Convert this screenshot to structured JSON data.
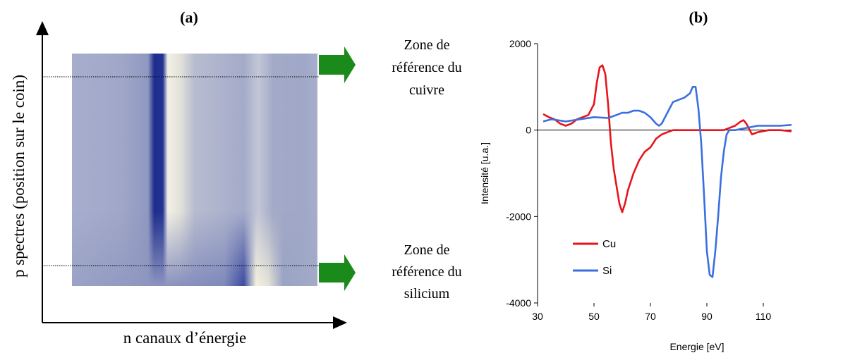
{
  "panel_a": {
    "label": "(a)",
    "y_axis_label": "p spectres (position sur le coin)",
    "x_axis_label": "n canaux d’énergie",
    "zone_cu": [
      "Zone de",
      "référence du",
      "cuivre"
    ],
    "zone_si": [
      "Zone de",
      "référence du",
      "silicium"
    ],
    "colors": {
      "map_base": "#9aa3c6",
      "dark_band": "#1f2e8c",
      "bright_band": "#f3f1e6",
      "arrow": "#1a8a1a"
    }
  },
  "chart_data": {
    "type": "line",
    "panel_label": "(b)",
    "xlabel": "Energie [eV]",
    "ylabel": "Intensité [u.a.]",
    "xlim": [
      30,
      120
    ],
    "ylim": [
      -4000,
      2000
    ],
    "xticks": [
      30,
      50,
      70,
      90,
      110
    ],
    "yticks": [
      -4000,
      -2000,
      0,
      2000
    ],
    "grid": false,
    "legend_position": "bottom-left",
    "series": [
      {
        "name": "Cu",
        "color": "#e8141b",
        "x": [
          32,
          34,
          36,
          38,
          40,
          42,
          44,
          46,
          48,
          50,
          51,
          52,
          53,
          54,
          55,
          56,
          57,
          58,
          59,
          60,
          61,
          62,
          64,
          66,
          68,
          70,
          72,
          74,
          76,
          78,
          80,
          84,
          88,
          92,
          96,
          100,
          102,
          103,
          104,
          106,
          108,
          112,
          116,
          120
        ],
        "y": [
          370,
          300,
          250,
          150,
          100,
          150,
          250,
          300,
          350,
          600,
          1100,
          1450,
          1500,
          1300,
          600,
          -300,
          -900,
          -1300,
          -1700,
          -1900,
          -1700,
          -1400,
          -1000,
          -700,
          -500,
          -400,
          -200,
          -100,
          -50,
          0,
          0,
          0,
          0,
          0,
          0,
          100,
          200,
          230,
          150,
          -100,
          -50,
          0,
          0,
          -30
        ]
      },
      {
        "name": "Si",
        "color": "#3a6fe0",
        "x": [
          32,
          35,
          40,
          45,
          50,
          55,
          58,
          60,
          62,
          64,
          66,
          68,
          70,
          72,
          73,
          74,
          76,
          78,
          80,
          82,
          84,
          85,
          86,
          87,
          88,
          89,
          90,
          91,
          92,
          93,
          94,
          95,
          96,
          97,
          98,
          100,
          104,
          108,
          112,
          116,
          120
        ],
        "y": [
          200,
          250,
          200,
          250,
          300,
          280,
          350,
          400,
          400,
          450,
          450,
          400,
          300,
          150,
          100,
          150,
          400,
          650,
          700,
          750,
          850,
          1000,
          1000,
          500,
          -300,
          -1500,
          -2800,
          -3350,
          -3400,
          -2800,
          -2000,
          -1100,
          -500,
          -100,
          0,
          0,
          50,
          100,
          100,
          100,
          120
        ]
      }
    ]
  }
}
